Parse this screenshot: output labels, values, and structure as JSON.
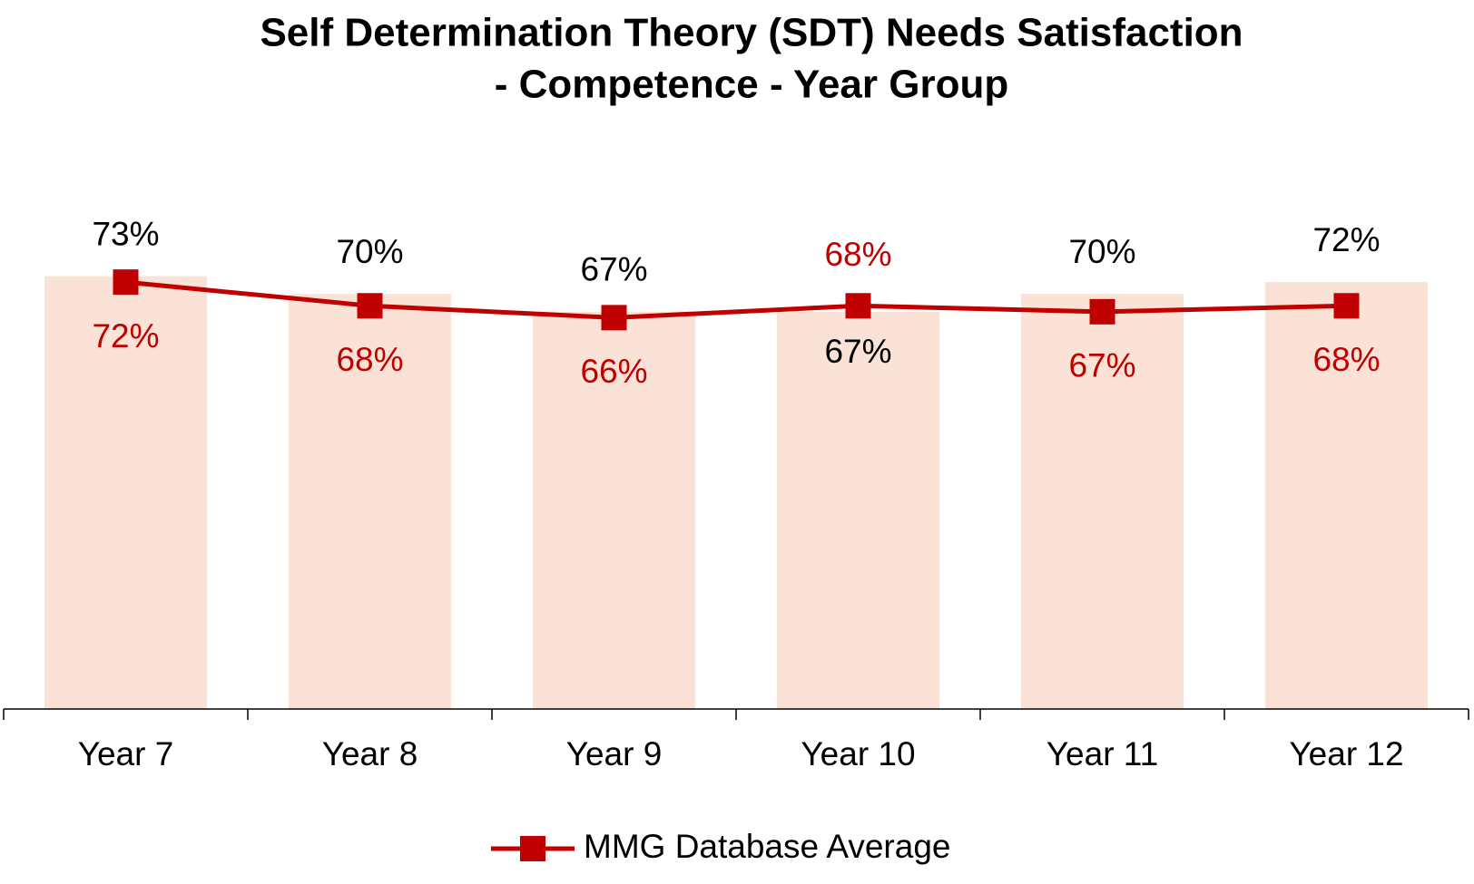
{
  "chart_data": {
    "type": "bar",
    "title": [
      "Self Determination Theory (SDT) Needs Satisfaction",
      "- Competence - Year Group"
    ],
    "categories": [
      "Year 7",
      "Year 8",
      "Year 9",
      "Year 10",
      "Year 11",
      "Year 12"
    ],
    "ylim": [
      0,
      100
    ],
    "series": [
      {
        "type": "bar",
        "color": "#fae3d6",
        "label_color": "#000000",
        "values": [
          73,
          70,
          67,
          67,
          70,
          72
        ],
        "value_labels": [
          "73%",
          "70%",
          "67%",
          "67%",
          "70%",
          "72%"
        ]
      },
      {
        "type": "line",
        "name": "MMG Database Average",
        "color": "#c00000",
        "label_color": "#c00000",
        "values": [
          72,
          68,
          66,
          68,
          67,
          68
        ],
        "value_labels": [
          "72%",
          "68%",
          "66%",
          "68%",
          "67%",
          "68%"
        ]
      }
    ],
    "legend": "bottom"
  }
}
